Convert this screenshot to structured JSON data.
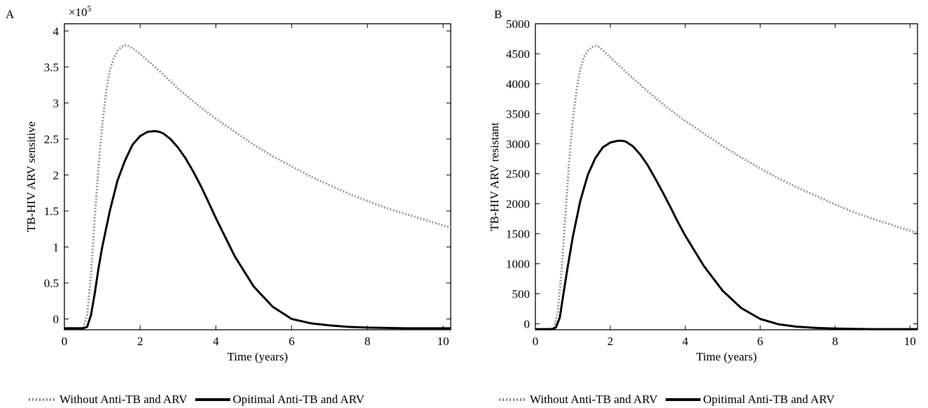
{
  "chart_data": [
    {
      "type": "line",
      "panel_label": "A",
      "title": "",
      "xlabel": "Time (years)",
      "ylabel": "TB-HIV ARV sensitive",
      "y_multiplier": "×10",
      "y_multiplier_exp": "5",
      "xlim": [
        0,
        10.2
      ],
      "ylim": [
        -0.15,
        4.1
      ],
      "xticks": [
        0,
        2,
        4,
        6,
        8,
        10
      ],
      "xtick_labels": [
        "0",
        "2",
        "4",
        "6",
        "8",
        "10"
      ],
      "yticks": [
        0,
        0.5,
        1,
        1.5,
        2,
        2.5,
        3,
        3.5,
        4
      ],
      "ytick_labels": [
        "0",
        "0.5",
        "1",
        "1.5",
        "2",
        "2.5",
        "3",
        "3.5",
        "4"
      ],
      "grid": false,
      "series": [
        {
          "name": "Without Anti-TB and ARV",
          "style": "dotted",
          "color": "#9a9a9a",
          "x": [
            0,
            0.4,
            0.5,
            0.6,
            0.7,
            0.8,
            0.9,
            1.0,
            1.1,
            1.2,
            1.3,
            1.4,
            1.5,
            1.6,
            1.7,
            1.8,
            2.0,
            2.5,
            3.0,
            3.5,
            4.0,
            4.5,
            5.0,
            5.5,
            6.0,
            6.5,
            7.0,
            7.5,
            8.0,
            8.5,
            9.0,
            9.5,
            10.0,
            10.2
          ],
          "y": [
            -0.13,
            -0.13,
            -0.12,
            0.05,
            0.6,
            1.4,
            2.1,
            2.7,
            3.15,
            3.45,
            3.62,
            3.72,
            3.78,
            3.8,
            3.79,
            3.76,
            3.68,
            3.45,
            3.2,
            2.98,
            2.78,
            2.6,
            2.42,
            2.26,
            2.12,
            1.98,
            1.86,
            1.74,
            1.64,
            1.54,
            1.46,
            1.38,
            1.3,
            1.27
          ]
        },
        {
          "name": "Opitimal Anti-TB and ARV",
          "style": "solid",
          "color": "#000000",
          "x": [
            0,
            0.5,
            0.6,
            0.7,
            0.8,
            0.9,
            1.0,
            1.2,
            1.4,
            1.6,
            1.8,
            2.0,
            2.2,
            2.4,
            2.5,
            2.6,
            2.8,
            3.0,
            3.2,
            3.4,
            3.6,
            3.8,
            4.0,
            4.5,
            5.0,
            5.5,
            6.0,
            6.5,
            7.0,
            7.5,
            8.0,
            8.5,
            9.0,
            9.5,
            10.0,
            10.2
          ],
          "y": [
            -0.13,
            -0.13,
            -0.11,
            0.05,
            0.35,
            0.7,
            1.0,
            1.5,
            1.92,
            2.2,
            2.42,
            2.54,
            2.6,
            2.61,
            2.6,
            2.58,
            2.5,
            2.38,
            2.23,
            2.05,
            1.85,
            1.63,
            1.4,
            0.87,
            0.45,
            0.17,
            0.0,
            -0.06,
            -0.09,
            -0.11,
            -0.12,
            -0.125,
            -0.13,
            -0.13,
            -0.13,
            -0.13
          ]
        }
      ],
      "legend": [
        "Without Anti-TB and ARV",
        "Opitimal Anti-TB and ARV"
      ],
      "legend_position": "bottom"
    },
    {
      "type": "line",
      "panel_label": "B",
      "title": "",
      "xlabel": "Time (years)",
      "ylabel": "TB-HIV ARV resistant",
      "xlim": [
        0,
        10.2
      ],
      "ylim": [
        -100,
        5000
      ],
      "xticks": [
        0,
        2,
        4,
        6,
        8,
        10
      ],
      "xtick_labels": [
        "0",
        "2",
        "4",
        "6",
        "8",
        "10"
      ],
      "yticks": [
        0,
        500,
        1000,
        1500,
        2000,
        2500,
        3000,
        3500,
        4000,
        4500,
        5000
      ],
      "ytick_labels": [
        "0",
        "500",
        "1000",
        "1500",
        "2000",
        "2500",
        "3000",
        "3500",
        "4000",
        "4500",
        "5000"
      ],
      "grid": false,
      "series": [
        {
          "name": "Without Anti-TB and ARV",
          "style": "dotted",
          "color": "#9a9a9a",
          "x": [
            0,
            0.4,
            0.5,
            0.6,
            0.7,
            0.8,
            0.9,
            1.0,
            1.1,
            1.2,
            1.3,
            1.4,
            1.5,
            1.6,
            1.7,
            1.8,
            2.0,
            2.5,
            3.0,
            3.5,
            4.0,
            4.5,
            5.0,
            5.5,
            6.0,
            6.5,
            7.0,
            7.5,
            8.0,
            8.5,
            9.0,
            9.5,
            10.0,
            10.2
          ],
          "y": [
            -90,
            -90,
            -70,
            200,
            900,
            1800,
            2700,
            3400,
            3900,
            4250,
            4450,
            4550,
            4610,
            4630,
            4610,
            4560,
            4440,
            4150,
            3870,
            3610,
            3380,
            3170,
            2960,
            2770,
            2590,
            2420,
            2270,
            2130,
            1990,
            1860,
            1750,
            1650,
            1550,
            1510
          ]
        },
        {
          "name": "Opitimal Anti-TB and ARV",
          "style": "solid",
          "color": "#000000",
          "x": [
            0,
            0.45,
            0.55,
            0.65,
            0.75,
            0.85,
            1.0,
            1.2,
            1.4,
            1.6,
            1.8,
            2.0,
            2.2,
            2.3,
            2.4,
            2.6,
            2.8,
            3.0,
            3.2,
            3.4,
            3.6,
            3.8,
            4.0,
            4.5,
            5.0,
            5.5,
            6.0,
            6.5,
            7.0,
            7.5,
            8.0,
            8.5,
            9.0,
            9.5,
            10.0,
            10.2
          ],
          "y": [
            -90,
            -90,
            -60,
            100,
            500,
            900,
            1450,
            2050,
            2480,
            2760,
            2940,
            3020,
            3050,
            3050,
            3040,
            2960,
            2820,
            2640,
            2420,
            2190,
            1950,
            1700,
            1470,
            960,
            550,
            260,
            80,
            -10,
            -50,
            -70,
            -80,
            -85,
            -90,
            -90,
            -90,
            -90
          ]
        }
      ],
      "legend": [
        "Without Anti-TB and ARV",
        "Opitimal Anti-TB and ARV"
      ],
      "legend_position": "bottom"
    }
  ]
}
